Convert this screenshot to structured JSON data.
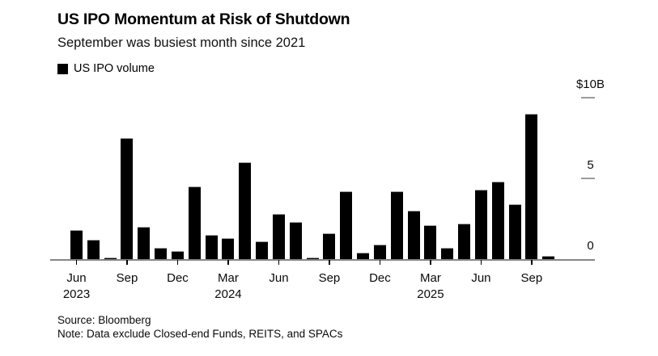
{
  "header": {
    "title": "US IPO Momentum at Risk of Shutdown",
    "subtitle": "September was busiest month since 2021"
  },
  "legend": {
    "label": "US IPO volume"
  },
  "footer": {
    "source": "Source: Bloomberg",
    "note": "Note: Data exclude Closed-end Funds, REITS, and SPACs"
  },
  "colors": {
    "bar": "#000000",
    "axis_line": "#858585",
    "tick": "#000000",
    "background": "#ffffff"
  },
  "chart_data": {
    "type": "bar",
    "title": "US IPO Momentum at Risk of Shutdown",
    "subtitle": "September was busiest month since 2021",
    "series_name": "US IPO volume",
    "unit": "$B",
    "ylim": [
      0,
      10
    ],
    "grid": false,
    "legend_position": "top-left",
    "categories": [
      "Jun 2023",
      "Jul 2023",
      "Aug 2023",
      "Sep 2023",
      "Oct 2023",
      "Nov 2023",
      "Dec 2023",
      "Jan 2024",
      "Feb 2024",
      "Mar 2024",
      "Apr 2024",
      "May 2024",
      "Jun 2024",
      "Jul 2024",
      "Aug 2024",
      "Sep 2024",
      "Oct 2024",
      "Nov 2024",
      "Dec 2024",
      "Jan 2025",
      "Feb 2025",
      "Mar 2025",
      "Apr 2025",
      "May 2025",
      "Jun 2025",
      "Jul 2025",
      "Aug 2025",
      "Sep 2025",
      "Oct 2025"
    ],
    "values": [
      1.8,
      1.2,
      0.1,
      7.5,
      2.0,
      0.7,
      0.5,
      4.5,
      1.5,
      1.3,
      6.0,
      1.1,
      2.8,
      2.3,
      0.1,
      1.6,
      4.2,
      0.4,
      0.9,
      4.2,
      3.0,
      2.1,
      0.7,
      2.2,
      4.3,
      4.8,
      3.4,
      9.0,
      0.2
    ],
    "y_ticks": [
      {
        "label": "$10B",
        "value": 10,
        "dash": true
      },
      {
        "label": "5",
        "value": 5,
        "dash": true
      },
      {
        "label": "0",
        "value": 0,
        "dash": false
      }
    ],
    "x_ticks": [
      {
        "index": 0,
        "label": "Jun",
        "year": "2023"
      },
      {
        "index": 3,
        "label": "Sep",
        "year": ""
      },
      {
        "index": 6,
        "label": "Dec",
        "year": ""
      },
      {
        "index": 9,
        "label": "Mar",
        "year": "2024"
      },
      {
        "index": 12,
        "label": "Jun",
        "year": ""
      },
      {
        "index": 15,
        "label": "Sep",
        "year": ""
      },
      {
        "index": 18,
        "label": "Dec",
        "year": ""
      },
      {
        "index": 21,
        "label": "Mar",
        "year": "2025"
      },
      {
        "index": 24,
        "label": "Jun",
        "year": ""
      },
      {
        "index": 27,
        "label": "Sep",
        "year": ""
      }
    ]
  }
}
